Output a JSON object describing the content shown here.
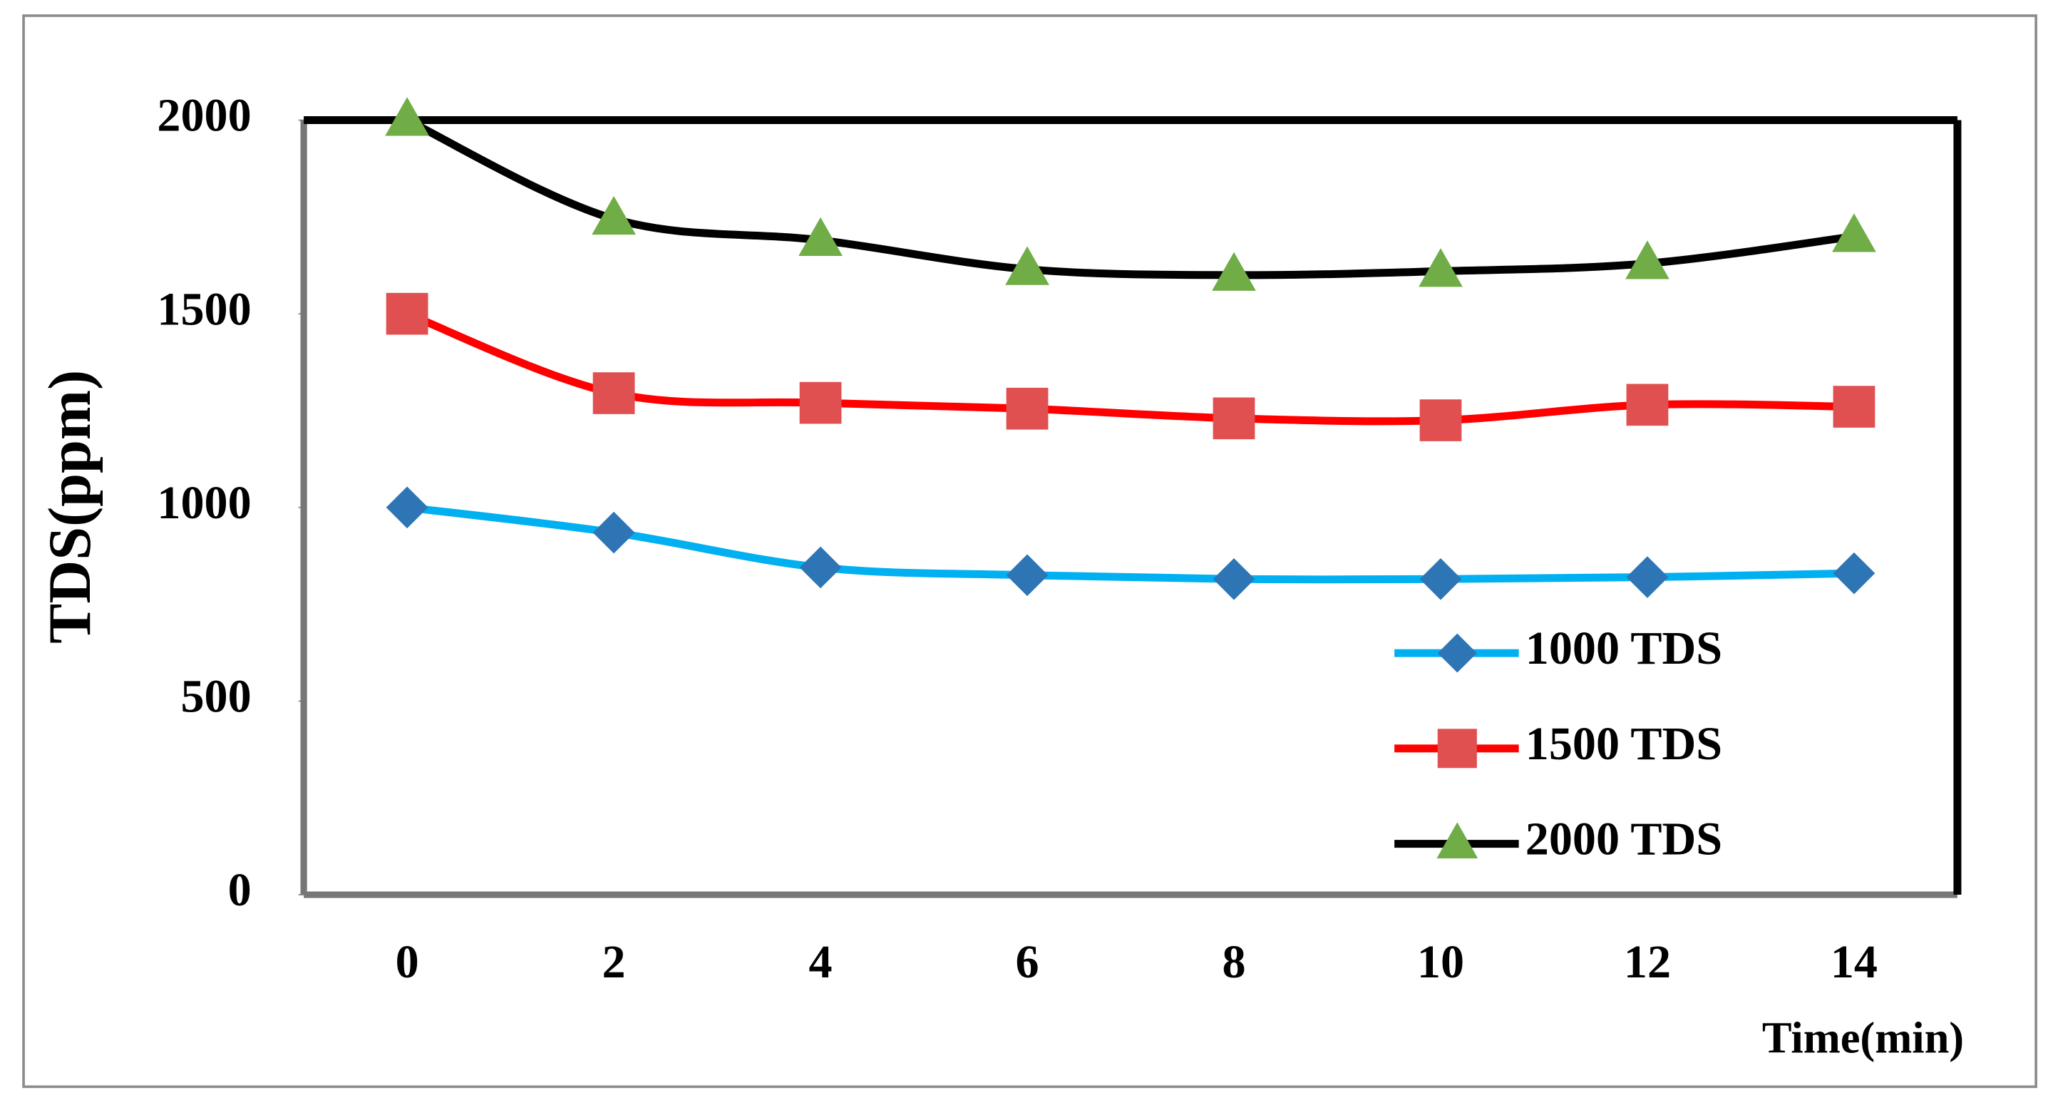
{
  "chart_data": {
    "type": "line",
    "y_label": "TDS(ppm)",
    "x_label": "Time(min)",
    "categories": [
      "0",
      "2",
      "4",
      "6",
      "8",
      "10",
      "12",
      "14"
    ],
    "ylim": [
      0,
      2000
    ],
    "yticks": [
      0,
      500,
      1000,
      1500,
      2000
    ],
    "smooth": true,
    "legend": "lower right",
    "series": [
      {
        "name": "1000 TDS",
        "color": "#00b0f0",
        "marker": "diamond",
        "marker_color": "#2e75b6",
        "values": [
          1000,
          935,
          845,
          825,
          815,
          815,
          820,
          830
        ]
      },
      {
        "name": "1500 TDS",
        "color": "#ff0000",
        "marker": "square",
        "marker_color": "#e05050",
        "values": [
          1500,
          1295,
          1270,
          1255,
          1230,
          1225,
          1265,
          1260
        ]
      },
      {
        "name": "2000 TDS",
        "color": "#000000",
        "marker": "triangle",
        "marker_color": "#70ad47",
        "values": [
          2000,
          1745,
          1690,
          1615,
          1600,
          1610,
          1630,
          1700
        ]
      }
    ]
  }
}
